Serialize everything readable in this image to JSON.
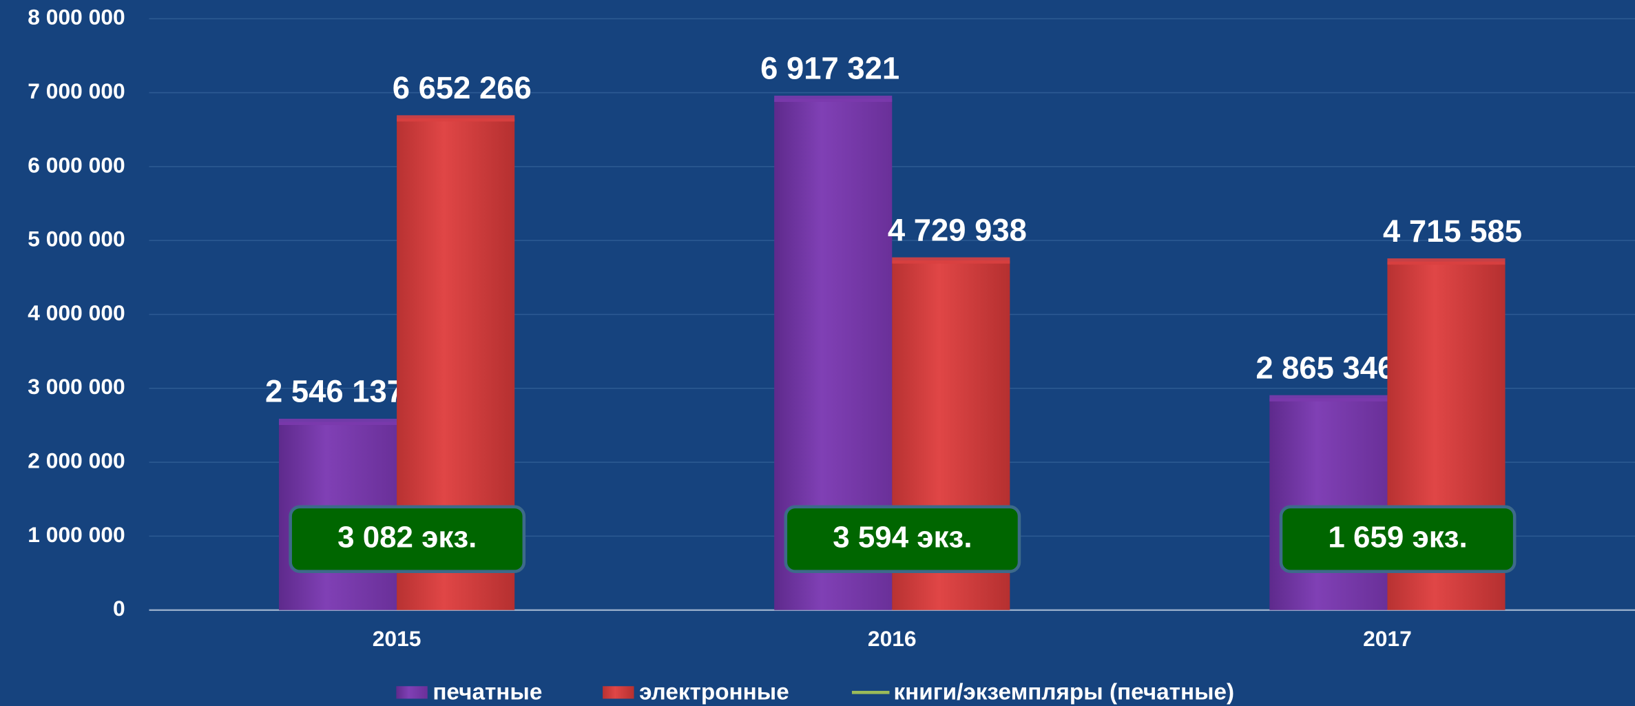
{
  "chart_data": {
    "type": "bar",
    "categories": [
      "2015",
      "2016",
      "2017"
    ],
    "series": [
      {
        "name": "печатные",
        "color": "#7b3aad",
        "values": [
          2546137,
          6917321,
          2865346
        ],
        "value_labels": [
          "2 546 137",
          "6 917 321",
          "2 865 346"
        ]
      },
      {
        "name": "электронные",
        "color": "#d94040",
        "values": [
          6652266,
          4729938,
          4715585
        ],
        "value_labels": [
          "6 652 266",
          "4 729 938",
          "4 715 585"
        ]
      },
      {
        "name": "книги/экземпляры (печатные)",
        "color": "#9bbb59",
        "values": [
          3082,
          3594,
          1659
        ],
        "value_labels": [
          "3 082 экз.",
          "3 594 экз.",
          "1 659 экз."
        ]
      }
    ],
    "ylim": [
      0,
      8000000
    ],
    "yticks": [
      {
        "value": 0,
        "label": "0"
      },
      {
        "value": 1000000,
        "label": "1 000 000"
      },
      {
        "value": 2000000,
        "label": "2 000 000"
      },
      {
        "value": 3000000,
        "label": "3 000 000"
      },
      {
        "value": 4000000,
        "label": "4 000 000"
      },
      {
        "value": 5000000,
        "label": "5 000 000"
      },
      {
        "value": 6000000,
        "label": "6 000 000"
      },
      {
        "value": 7000000,
        "label": "7 000 000"
      },
      {
        "value": 8000000,
        "label": "8 000 000"
      }
    ],
    "grid": true
  }
}
